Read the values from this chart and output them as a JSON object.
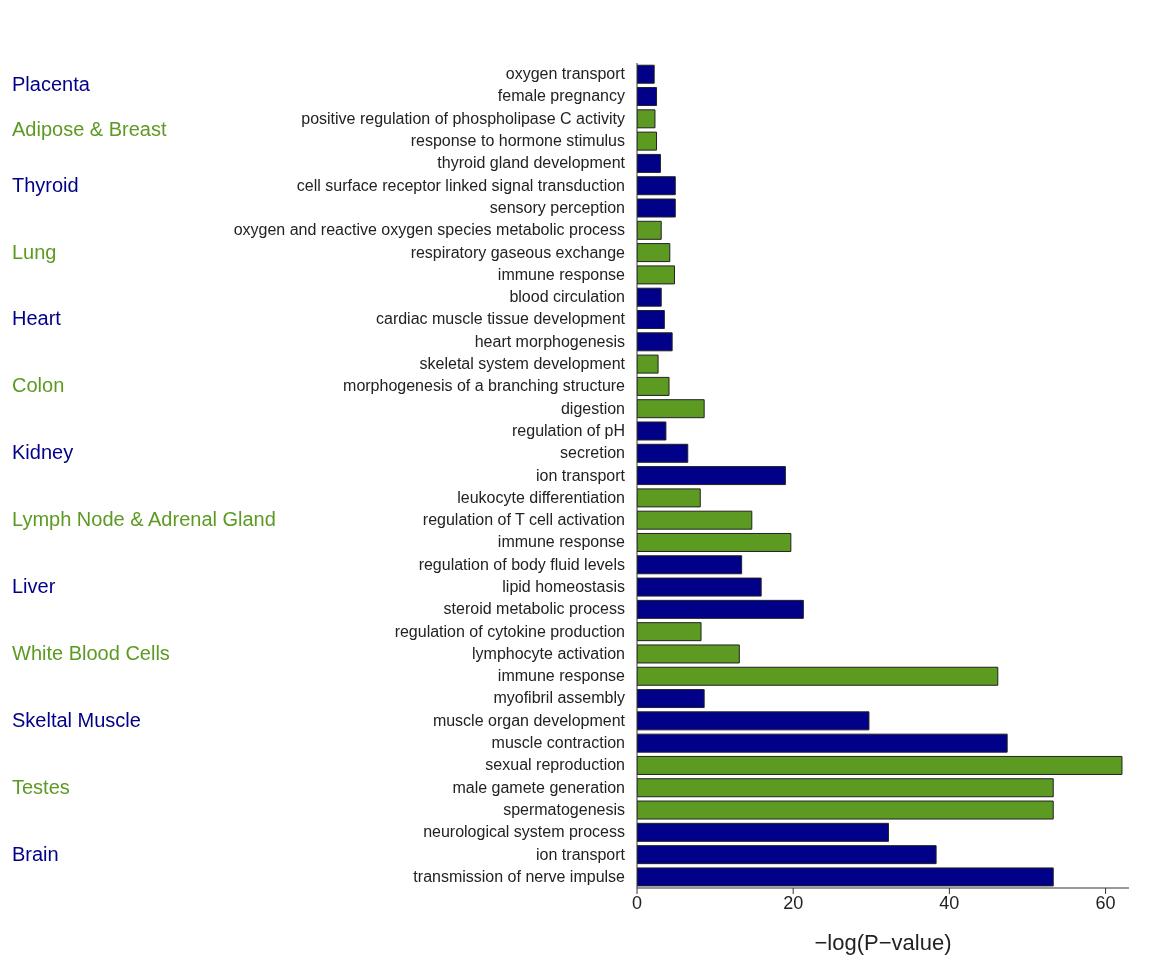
{
  "chart_data": {
    "type": "bar",
    "orientation": "horizontal",
    "xlabel": "−log(P−value)",
    "categories": [
      "oxygen transport",
      "female pregnancy",
      "positive regulation of phospholipase C activity",
      "response to hormone stimulus",
      "thyroid gland development",
      "cell surface receptor linked signal transduction",
      "sensory perception",
      "oxygen and reactive oxygen species metabolic process",
      "respiratory gaseous exchange",
      "immune response",
      "blood circulation",
      "cardiac muscle tissue development",
      "heart morphogenesis",
      "skeletal system development",
      "morphogenesis of a branching structure",
      "digestion",
      "regulation of pH",
      "secretion",
      "ion transport",
      "leukocyte differentiation",
      "regulation of T cell activation",
      "immune response",
      "regulation of body fluid levels",
      "lipid homeostasis",
      "steroid metabolic process",
      "regulation of cytokine production",
      "lymphocyte activation",
      "immune response",
      "myofibril assembly",
      "muscle organ development",
      "muscle contraction",
      "sexual reproduction",
      "male gamete generation",
      "spermatogenesis",
      "neurological system process",
      "ion transport",
      "transmission of nerve impulse"
    ],
    "values": [
      2.2,
      2.5,
      2.3,
      2.5,
      3.0,
      4.9,
      4.9,
      3.1,
      4.2,
      4.8,
      3.1,
      3.5,
      4.5,
      2.7,
      4.1,
      8.6,
      3.7,
      6.5,
      19.0,
      8.1,
      14.7,
      19.7,
      13.4,
      15.9,
      21.3,
      8.2,
      13.1,
      46.2,
      8.6,
      29.7,
      47.4,
      62.1,
      53.3,
      53.3,
      32.2,
      38.3,
      53.3
    ],
    "colors": [
      "#000088",
      "#000088",
      "#5c9a22",
      "#5c9a22",
      "#000088",
      "#000088",
      "#000088",
      "#5c9a22",
      "#5c9a22",
      "#5c9a22",
      "#000088",
      "#000088",
      "#000088",
      "#5c9a22",
      "#5c9a22",
      "#5c9a22",
      "#000088",
      "#000088",
      "#000088",
      "#5c9a22",
      "#5c9a22",
      "#5c9a22",
      "#000088",
      "#000088",
      "#000088",
      "#5c9a22",
      "#5c9a22",
      "#5c9a22",
      "#000088",
      "#000088",
      "#000088",
      "#5c9a22",
      "#5c9a22",
      "#5c9a22",
      "#000088",
      "#000088",
      "#000088"
    ],
    "xlim": [
      0,
      63
    ],
    "xticks": [
      0,
      20,
      40,
      60
    ],
    "grid": false,
    "legend": false,
    "annotations": [
      "Placenta",
      "Adipose & Breast",
      "Thyroid",
      "Lung",
      "Heart",
      "Colon",
      "Kidney",
      "Lymph Node & Adrenal Gland",
      "Liver",
      "White Blood Cells",
      "Skeltal Muscle",
      "Testes",
      "Brain"
    ]
  }
}
